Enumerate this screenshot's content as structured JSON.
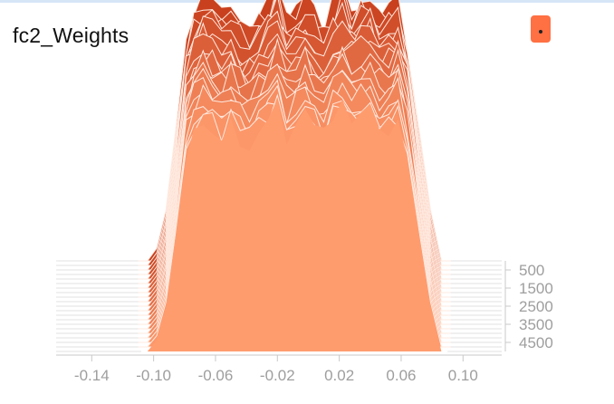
{
  "card": {
    "title": "fc2_Weights",
    "expand_icon": "expand-dot-icon",
    "accent_color": "#ff7043"
  },
  "chart_data": {
    "type": "area",
    "title": "fc2_Weights",
    "mode": "offset-histogram",
    "x_axis": {
      "range": [
        -0.163,
        0.125
      ],
      "ticks": [
        -0.14,
        -0.1,
        -0.06,
        -0.02,
        0.02,
        0.06,
        0.1
      ],
      "tick_labels": [
        "-0.14",
        "-0.10",
        "-0.06",
        "-0.02",
        "0.02",
        "0.06",
        "0.10"
      ]
    },
    "step_axis": {
      "range": [
        0,
        5000
      ],
      "ticks": [
        500,
        1500,
        2500,
        3500,
        4500
      ],
      "tick_labels": [
        "500",
        "1500",
        "2500",
        "3500",
        "4500"
      ]
    },
    "grid": false,
    "legend": "none",
    "color_oldest": "#c8401e",
    "color_newest": "#ff9c6e",
    "profile_x": [
      -0.104,
      -0.098,
      -0.092,
      -0.086,
      -0.079,
      -0.074,
      -0.068,
      -0.062,
      -0.056,
      -0.05,
      -0.044,
      -0.038,
      -0.032,
      -0.026,
      -0.02,
      -0.014,
      -0.008,
      -0.002,
      0.004,
      0.01,
      0.016,
      0.022,
      0.028,
      0.034,
      0.04,
      0.046,
      0.052,
      0.058,
      0.064,
      0.072,
      0.079,
      0.086
    ],
    "profile_base": [
      0,
      0.05,
      0.2,
      0.5,
      0.88,
      1.0,
      1.02,
      1.0,
      0.97,
      1.01,
      0.95,
      0.93,
      0.98,
      1.02,
      1.08,
      0.96,
      1.0,
      1.06,
      0.99,
      0.94,
      1.03,
      1.07,
      1.01,
      1.04,
      1.05,
      0.98,
      1.0,
      1.02,
      0.88,
      0.5,
      0.2,
      0
    ],
    "series": [
      {
        "step": 0,
        "peak_count": 131,
        "jitter_seed": 1
      },
      {
        "step": 250,
        "peak_count": 130,
        "jitter_seed": 2
      },
      {
        "step": 500,
        "peak_count": 128,
        "jitter_seed": 3
      },
      {
        "step": 750,
        "peak_count": 129,
        "jitter_seed": 4
      },
      {
        "step": 1000,
        "peak_count": 127,
        "jitter_seed": 5
      },
      {
        "step": 1250,
        "peak_count": 126,
        "jitter_seed": 6
      },
      {
        "step": 1500,
        "peak_count": 127,
        "jitter_seed": 7
      },
      {
        "step": 1750,
        "peak_count": 125,
        "jitter_seed": 8
      },
      {
        "step": 2000,
        "peak_count": 124,
        "jitter_seed": 9
      },
      {
        "step": 2250,
        "peak_count": 125,
        "jitter_seed": 10
      },
      {
        "step": 2500,
        "peak_count": 123,
        "jitter_seed": 11
      },
      {
        "step": 2750,
        "peak_count": 122,
        "jitter_seed": 12
      },
      {
        "step": 3000,
        "peak_count": 123,
        "jitter_seed": 13
      },
      {
        "step": 3250,
        "peak_count": 121,
        "jitter_seed": 14
      },
      {
        "step": 3500,
        "peak_count": 120,
        "jitter_seed": 15
      },
      {
        "step": 3750,
        "peak_count": 121,
        "jitter_seed": 16
      },
      {
        "step": 4000,
        "peak_count": 119,
        "jitter_seed": 17
      },
      {
        "step": 4250,
        "peak_count": 118,
        "jitter_seed": 18
      },
      {
        "step": 4500,
        "peak_count": 117,
        "jitter_seed": 19
      },
      {
        "step": 4750,
        "peak_count": 116,
        "jitter_seed": 20
      },
      {
        "step": 5000,
        "peak_count": 116,
        "jitter_seed": 21
      }
    ]
  }
}
